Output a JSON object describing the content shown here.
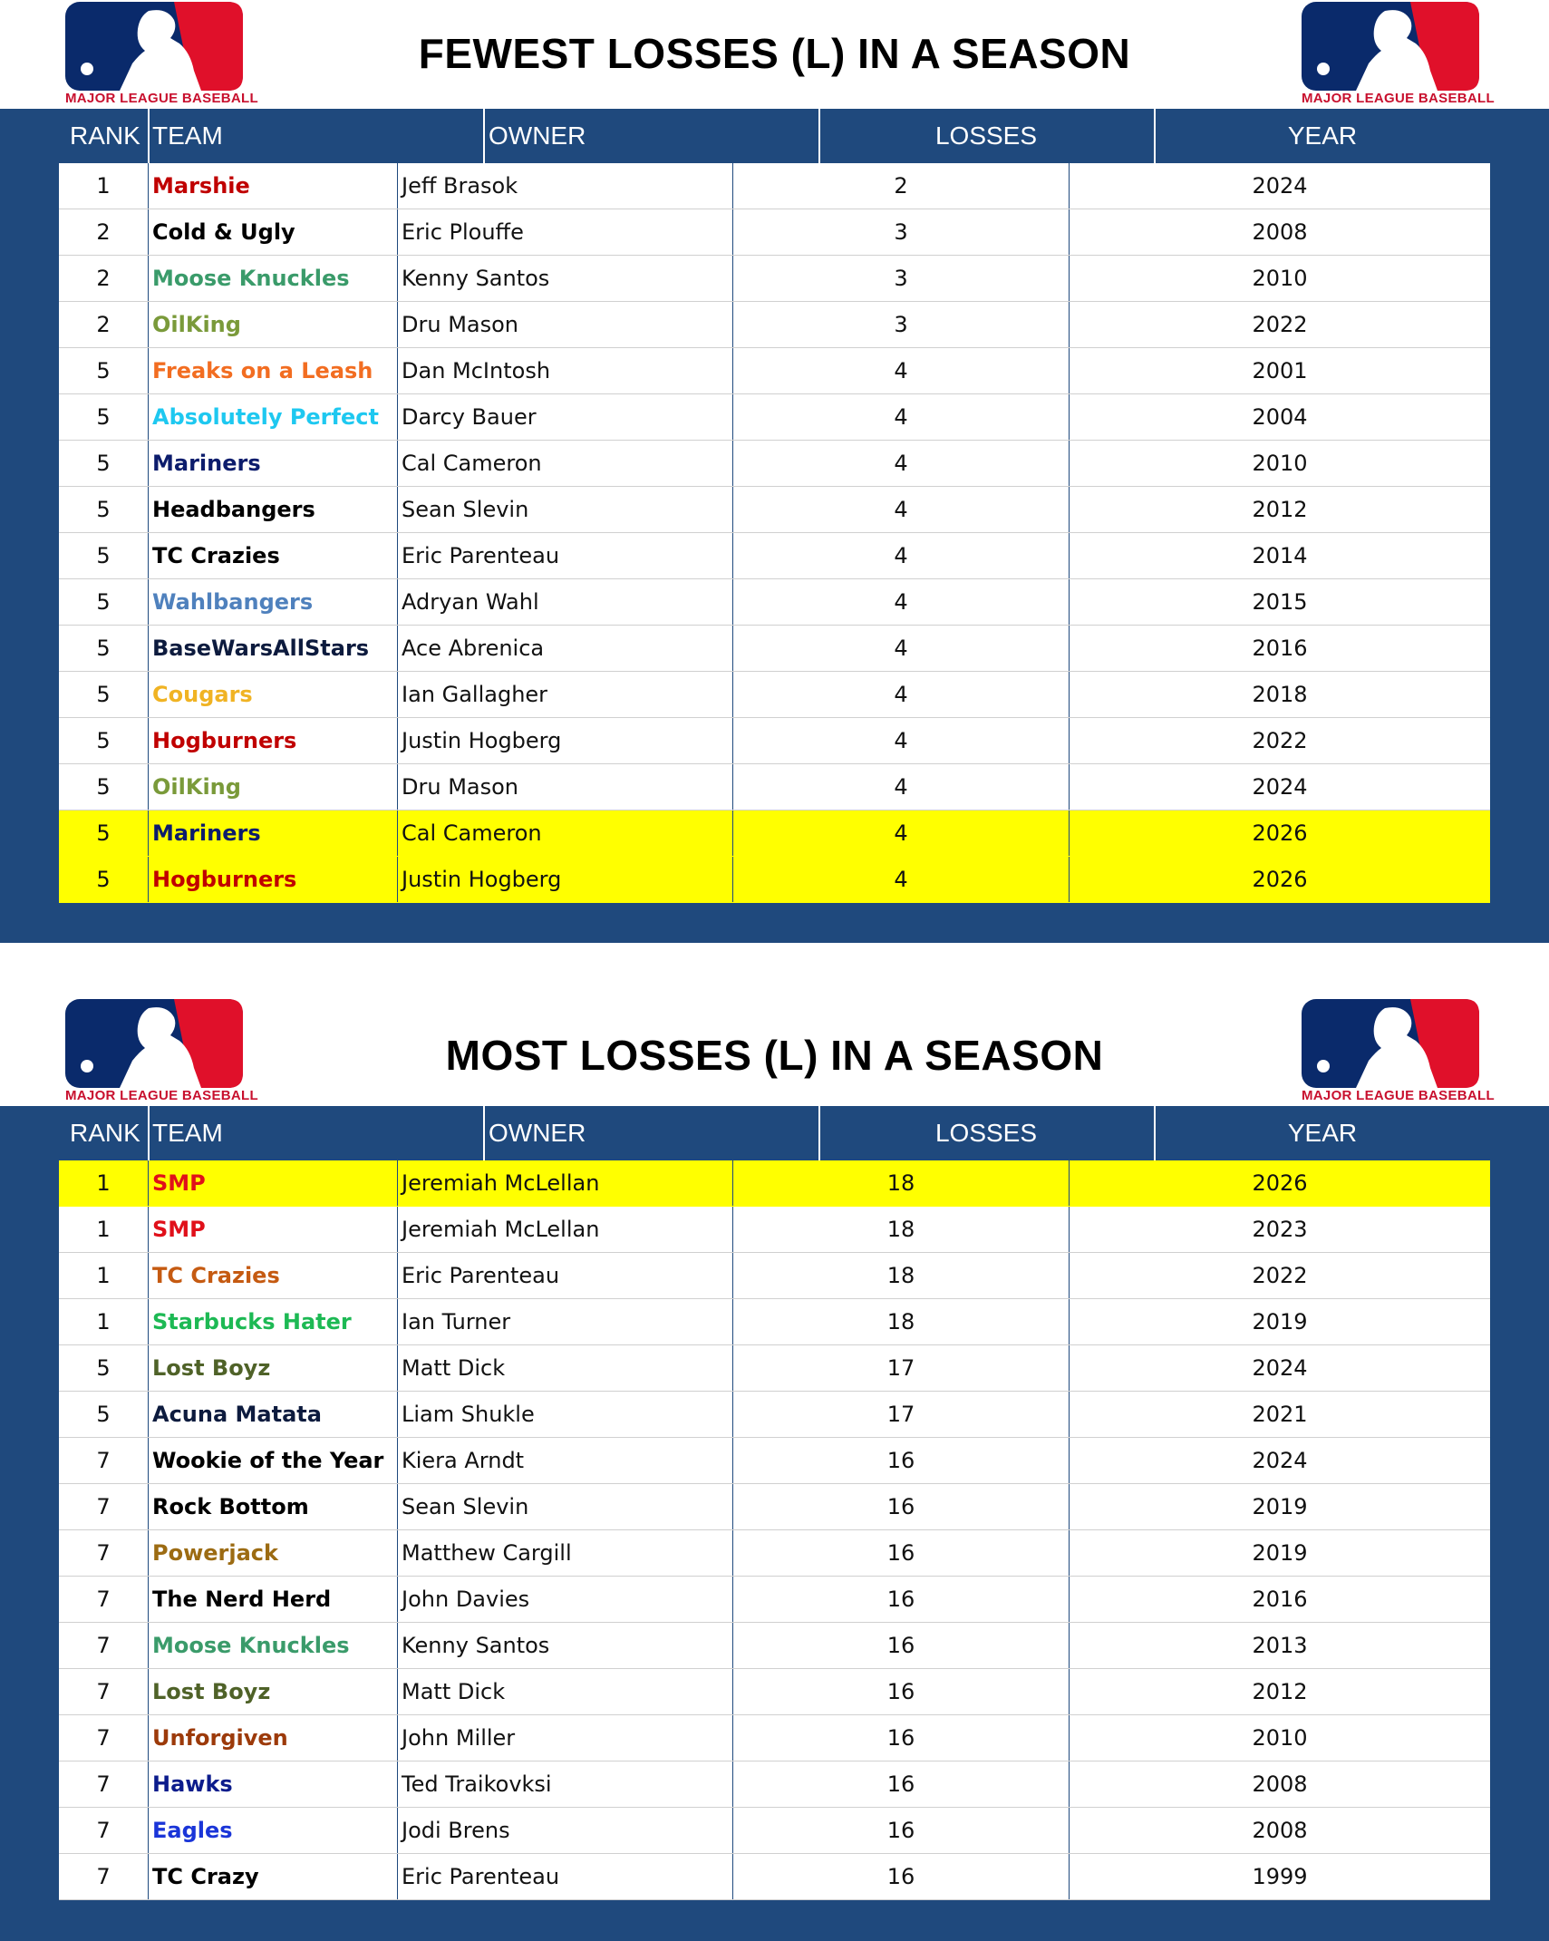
{
  "logo_text": "MAJOR LEAGUE BASEBALL",
  "columns": {
    "rank": "RANK",
    "team": "TEAM",
    "owner": "OWNER",
    "losses": "LOSSES",
    "year": "YEAR"
  },
  "fewest": {
    "title": "FEWEST LOSSES (L) IN A SEASON",
    "rows": [
      {
        "rank": "1",
        "team": "Marshie",
        "owner": "Jeff Brasok",
        "losses": "2",
        "year": "2024",
        "color": "#c00000",
        "highlight": false
      },
      {
        "rank": "2",
        "team": "Cold & Ugly",
        "owner": "Eric Plouffe",
        "losses": "3",
        "year": "2008",
        "color": "#000000",
        "highlight": false
      },
      {
        "rank": "2",
        "team": "Moose Knuckles",
        "owner": "Kenny Santos",
        "losses": "3",
        "year": "2010",
        "color": "#3a9b6a",
        "highlight": false
      },
      {
        "rank": "2",
        "team": "OilKing",
        "owner": "Dru Mason",
        "losses": "3",
        "year": "2022",
        "color": "#7a9a3a",
        "highlight": false
      },
      {
        "rank": "5",
        "team": "Freaks on a Leash",
        "owner": "Dan McIntosh",
        "losses": "4",
        "year": "2001",
        "color": "#f26d21",
        "highlight": false
      },
      {
        "rank": "5",
        "team": "Absolutely Perfect",
        "owner": "Darcy Bauer",
        "losses": "4",
        "year": "2004",
        "color": "#1ec8f0",
        "highlight": false
      },
      {
        "rank": "5",
        "team": "Mariners",
        "owner": "Cal Cameron",
        "losses": "4",
        "year": "2010",
        "color": "#0c1c6c",
        "highlight": false
      },
      {
        "rank": "5",
        "team": "Headbangers",
        "owner": "Sean Slevin",
        "losses": "4",
        "year": "2012",
        "color": "#000000",
        "highlight": false
      },
      {
        "rank": "5",
        "team": "TC Crazies",
        "owner": "Eric Parenteau",
        "losses": "4",
        "year": "2014",
        "color": "#000000",
        "highlight": false
      },
      {
        "rank": "5",
        "team": "Wahlbangers",
        "owner": "Adryan Wahl",
        "losses": "4",
        "year": "2015",
        "color": "#4f81bd",
        "highlight": false
      },
      {
        "rank": "5",
        "team": "BaseWarsAllStars",
        "owner": "Ace Abrenica",
        "losses": "4",
        "year": "2016",
        "color": "#0d1b3e",
        "highlight": false
      },
      {
        "rank": "5",
        "team": "Cougars",
        "owner": "Ian Gallagher",
        "losses": "4",
        "year": "2018",
        "color": "#f0b323",
        "highlight": false
      },
      {
        "rank": "5",
        "team": "Hogburners",
        "owner": "Justin Hogberg",
        "losses": "4",
        "year": "2022",
        "color": "#c00000",
        "highlight": false
      },
      {
        "rank": "5",
        "team": "OilKing",
        "owner": "Dru Mason",
        "losses": "4",
        "year": "2024",
        "color": "#7a9a3a",
        "highlight": false
      },
      {
        "rank": "5",
        "team": "Mariners",
        "owner": "Cal Cameron",
        "losses": "4",
        "year": "2026",
        "color": "#0c1c6c",
        "highlight": true
      },
      {
        "rank": "5",
        "team": "Hogburners",
        "owner": "Justin Hogberg",
        "losses": "4",
        "year": "2026",
        "color": "#c00000",
        "highlight": true
      }
    ]
  },
  "most": {
    "title": "MOST LOSSES (L) IN A SEASON",
    "rows": [
      {
        "rank": "1",
        "team": "SMP",
        "owner": "Jeremiah McLellan",
        "losses": "18",
        "year": "2026",
        "color": "#e0101a",
        "highlight": true
      },
      {
        "rank": "1",
        "team": "SMP",
        "owner": "Jeremiah McLellan",
        "losses": "18",
        "year": "2023",
        "color": "#e0101a",
        "highlight": false
      },
      {
        "rank": "1",
        "team": "TC Crazies",
        "owner": "Eric Parenteau",
        "losses": "18",
        "year": "2022",
        "color": "#c55a11",
        "highlight": false
      },
      {
        "rank": "1",
        "team": "Starbucks Hater",
        "owner": "Ian Turner",
        "losses": "18",
        "year": "2019",
        "color": "#1db954",
        "highlight": false
      },
      {
        "rank": "5",
        "team": "Lost Boyz",
        "owner": "Matt Dick",
        "losses": "17",
        "year": "2024",
        "color": "#4f6228",
        "highlight": false
      },
      {
        "rank": "5",
        "team": "Acuna Matata",
        "owner": "Liam Shukle",
        "losses": "17",
        "year": "2021",
        "color": "#0d1b3e",
        "highlight": false
      },
      {
        "rank": "7",
        "team": "Wookie of the Year",
        "owner": "Kiera Arndt",
        "losses": "16",
        "year": "2024",
        "color": "#000000",
        "highlight": false
      },
      {
        "rank": "7",
        "team": "Rock Bottom",
        "owner": "Sean Slevin",
        "losses": "16",
        "year": "2019",
        "color": "#000000",
        "highlight": false
      },
      {
        "rank": "7",
        "team": "Powerjack",
        "owner": "Matthew Cargill",
        "losses": "16",
        "year": "2019",
        "color": "#9c6b12",
        "highlight": false
      },
      {
        "rank": "7",
        "team": "The Nerd Herd",
        "owner": "John Davies",
        "losses": "16",
        "year": "2016",
        "color": "#000000",
        "highlight": false
      },
      {
        "rank": "7",
        "team": "Moose Knuckles",
        "owner": "Kenny Santos",
        "losses": "16",
        "year": "2013",
        "color": "#3a9b6a",
        "highlight": false
      },
      {
        "rank": "7",
        "team": "Lost Boyz",
        "owner": "Matt Dick",
        "losses": "16",
        "year": "2012",
        "color": "#4f6228",
        "highlight": false
      },
      {
        "rank": "7",
        "team": "Unforgiven",
        "owner": "John Miller",
        "losses": "16",
        "year": "2010",
        "color": "#9c3a0a",
        "highlight": false
      },
      {
        "rank": "7",
        "team": "Hawks",
        "owner": "Ted Traikovksi",
        "losses": "16",
        "year": "2008",
        "color": "#0c1c8c",
        "highlight": false
      },
      {
        "rank": "7",
        "team": "Eagles",
        "owner": "Jodi Brens",
        "losses": "16",
        "year": "2008",
        "color": "#1a35d8",
        "highlight": false
      },
      {
        "rank": "7",
        "team": "TC Crazy",
        "owner": "Eric Parenteau",
        "losses": "16",
        "year": "1999",
        "color": "#000000",
        "highlight": false
      }
    ]
  }
}
